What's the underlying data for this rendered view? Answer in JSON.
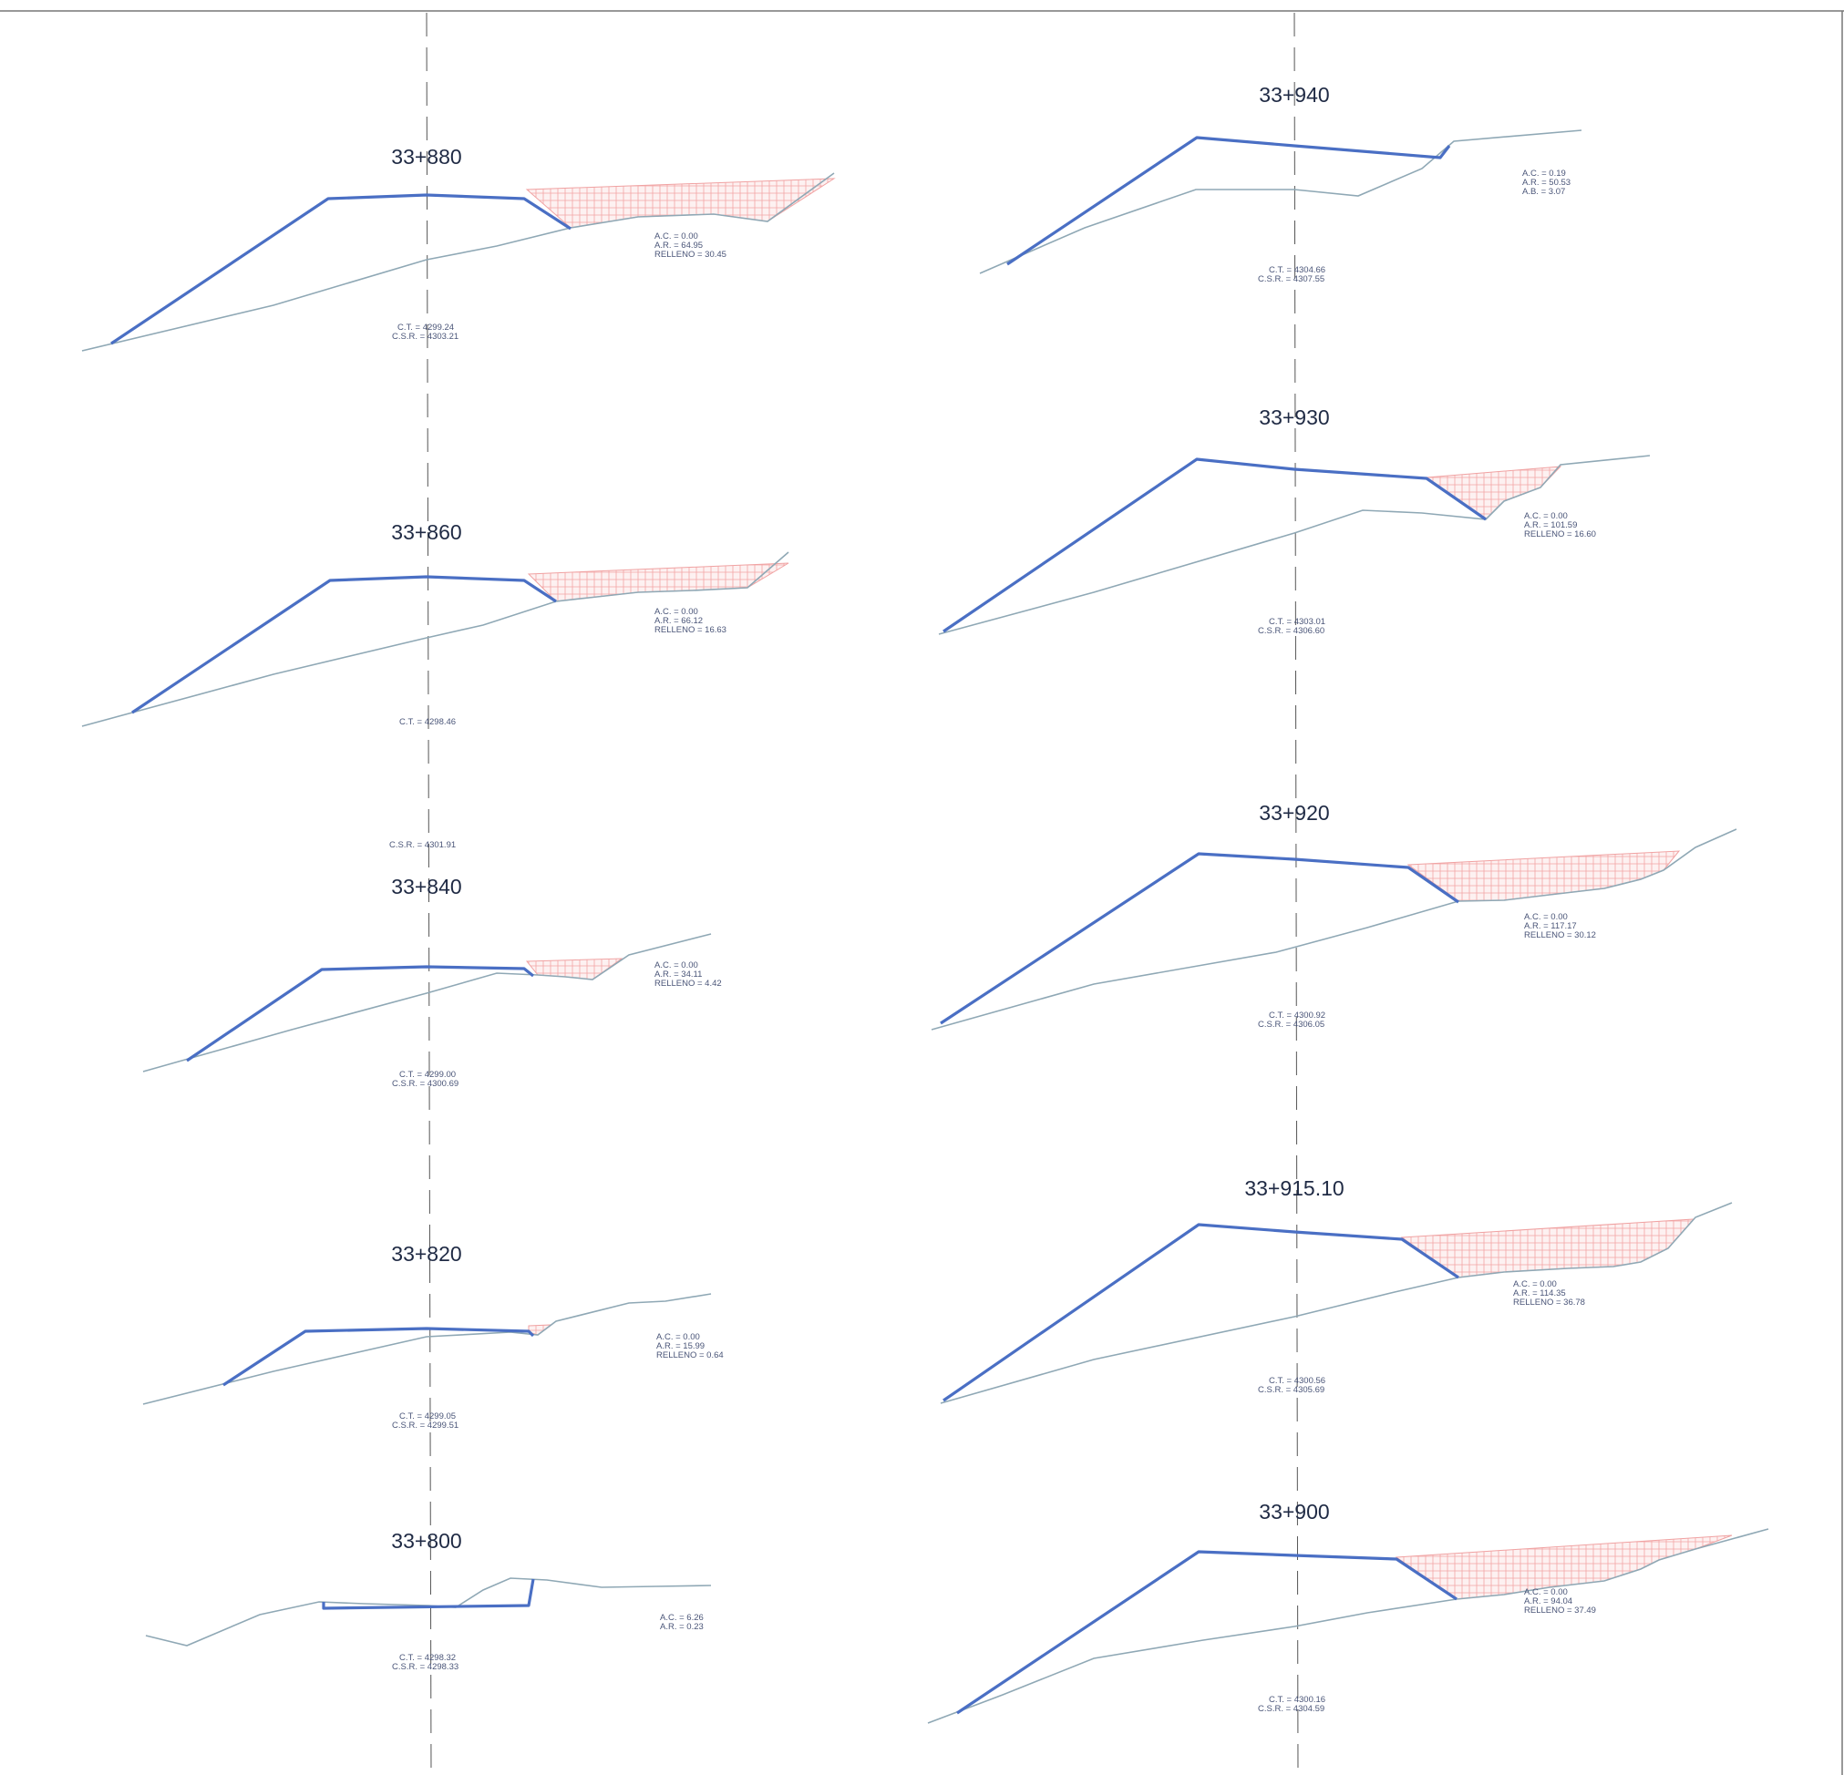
{
  "sections": [
    {
      "station": "33+880",
      "ann": [
        "A.C. = 0.00",
        "A.R. = 64.95",
        "RELLENO = 30.45"
      ],
      "ann2": [
        "C.T. = 4299.24",
        "C.S.R. = 4303.21"
      ]
    },
    {
      "station": "33+860",
      "ann": [
        "A.C. = 0.00",
        "A.R. = 66.12",
        "RELLENO = 16.63"
      ],
      "ann2": [
        "C.T. = 4298.46"
      ],
      "ann3": [
        "C.S.R. = 4301.91"
      ]
    },
    {
      "station": "33+840",
      "ann": [
        "A.C. = 0.00",
        "A.R. = 34.11",
        "RELLENO = 4.42"
      ],
      "ann2": [
        "C.T. = 4299.00",
        "C.S.R. = 4300.69"
      ]
    },
    {
      "station": "33+820",
      "ann": [
        "A.C. = 0.00",
        "A.R. = 15.99",
        "RELLENO = 0.64"
      ],
      "ann2": [
        "C.T. = 4299.05",
        "C.S.R. = 4299.51"
      ]
    },
    {
      "station": "33+800",
      "ann": [
        "A.C. = 6.26",
        "A.R. = 0.23"
      ],
      "ann2": [
        "C.T. = 4298.32",
        "C.S.R. = 4298.33"
      ]
    },
    {
      "station": "33+940",
      "ann": [
        "A.C. = 0.19",
        "A.R. = 50.53",
        "A.B. = 3.07"
      ],
      "ann2": [
        "C.T. = 4304.66",
        "C.S.R. = 4307.55"
      ]
    },
    {
      "station": "33+930",
      "ann": [
        "A.C. = 0.00",
        "A.R. = 101.59",
        "RELLENO = 16.60"
      ],
      "ann2": [
        "C.T. = 4303.01",
        "C.S.R. = 4306.60"
      ]
    },
    {
      "station": "33+920",
      "ann": [
        "A.C. = 0.00",
        "A.R. = 117.17",
        "RELLENO = 30.12"
      ],
      "ann2": [
        "C.T. = 4300.92",
        "C.S.R. = 4306.05"
      ]
    },
    {
      "station": "33+915.10",
      "ann": [
        "A.C. = 0.00",
        "A.R. = 114.35",
        "RELLENO = 36.78"
      ],
      "ann2": [
        "C.T. = 4300.56",
        "C.S.R. = 4305.69"
      ]
    },
    {
      "station": "33+900",
      "ann": [
        "A.C. = 0.00",
        "A.R. = 94.04",
        "RELLENO = 37.49"
      ],
      "ann2": [
        "C.T. = 4300.16",
        "C.S.R. = 4304.59"
      ]
    }
  ]
}
